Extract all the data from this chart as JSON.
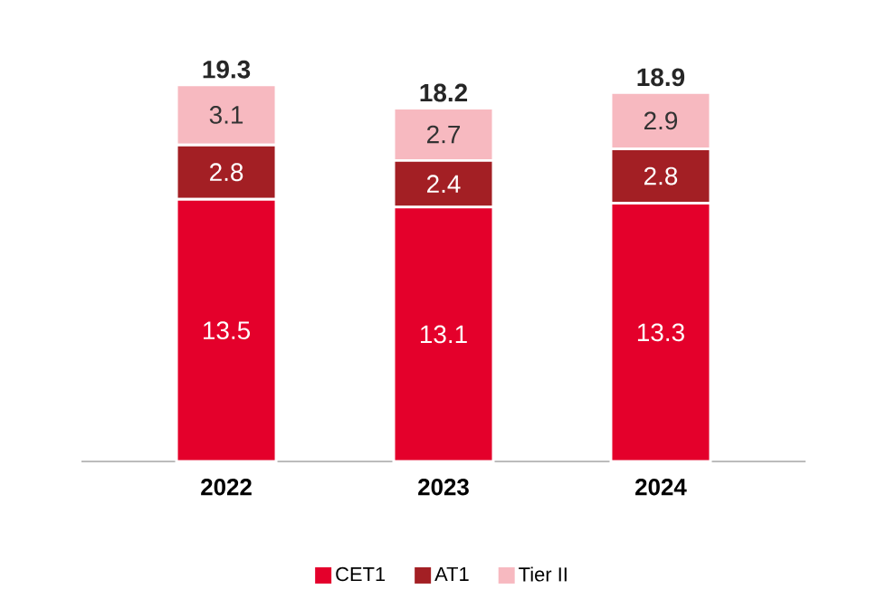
{
  "chart_data": {
    "type": "bar",
    "stacked": true,
    "categories": [
      "2022",
      "2023",
      "2024"
    ],
    "series": [
      {
        "name": "CET1",
        "color": "#e4002b",
        "values": [
          13.5,
          13.1,
          13.3
        ]
      },
      {
        "name": "AT1",
        "color": "#a31f24",
        "values": [
          2.8,
          2.4,
          2.8
        ]
      },
      {
        "name": "Tier II",
        "color": "#f7b9c0",
        "values": [
          3.1,
          2.7,
          2.9
        ]
      }
    ],
    "data_labels": true,
    "totals": [
      "19.3",
      "18.2",
      "18.9"
    ],
    "legend": "bottom"
  }
}
